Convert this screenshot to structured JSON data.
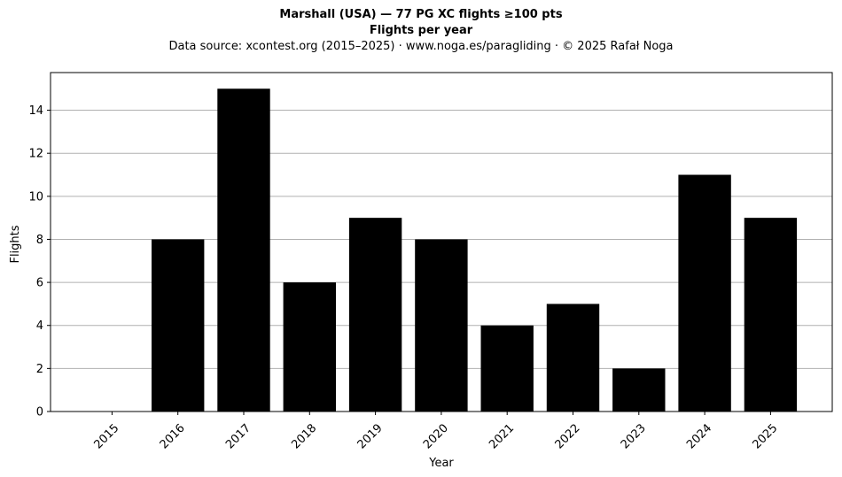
{
  "chart_data": {
    "type": "bar",
    "title": "Marshall (USA)  —  77 PG XC flights ≥100 pts",
    "subtitle": "Flights per year",
    "source_note": "Data source: xcontest.org (2015–2025)  ·  www.noga.es/paragliding  ·  © 2025 Rafał Noga",
    "xlabel": "Year",
    "ylabel": "Flights",
    "categories": [
      "2015",
      "2016",
      "2017",
      "2018",
      "2019",
      "2020",
      "2021",
      "2022",
      "2023",
      "2024",
      "2025"
    ],
    "values": [
      0,
      8,
      15,
      6,
      9,
      8,
      4,
      5,
      2,
      11,
      9
    ],
    "ylim": [
      0,
      15.75
    ],
    "yticks": [
      0,
      2,
      4,
      6,
      8,
      10,
      12,
      14
    ],
    "grid": "horizontal",
    "bar_color": "#000000",
    "grid_color": "#b0b0b0"
  }
}
